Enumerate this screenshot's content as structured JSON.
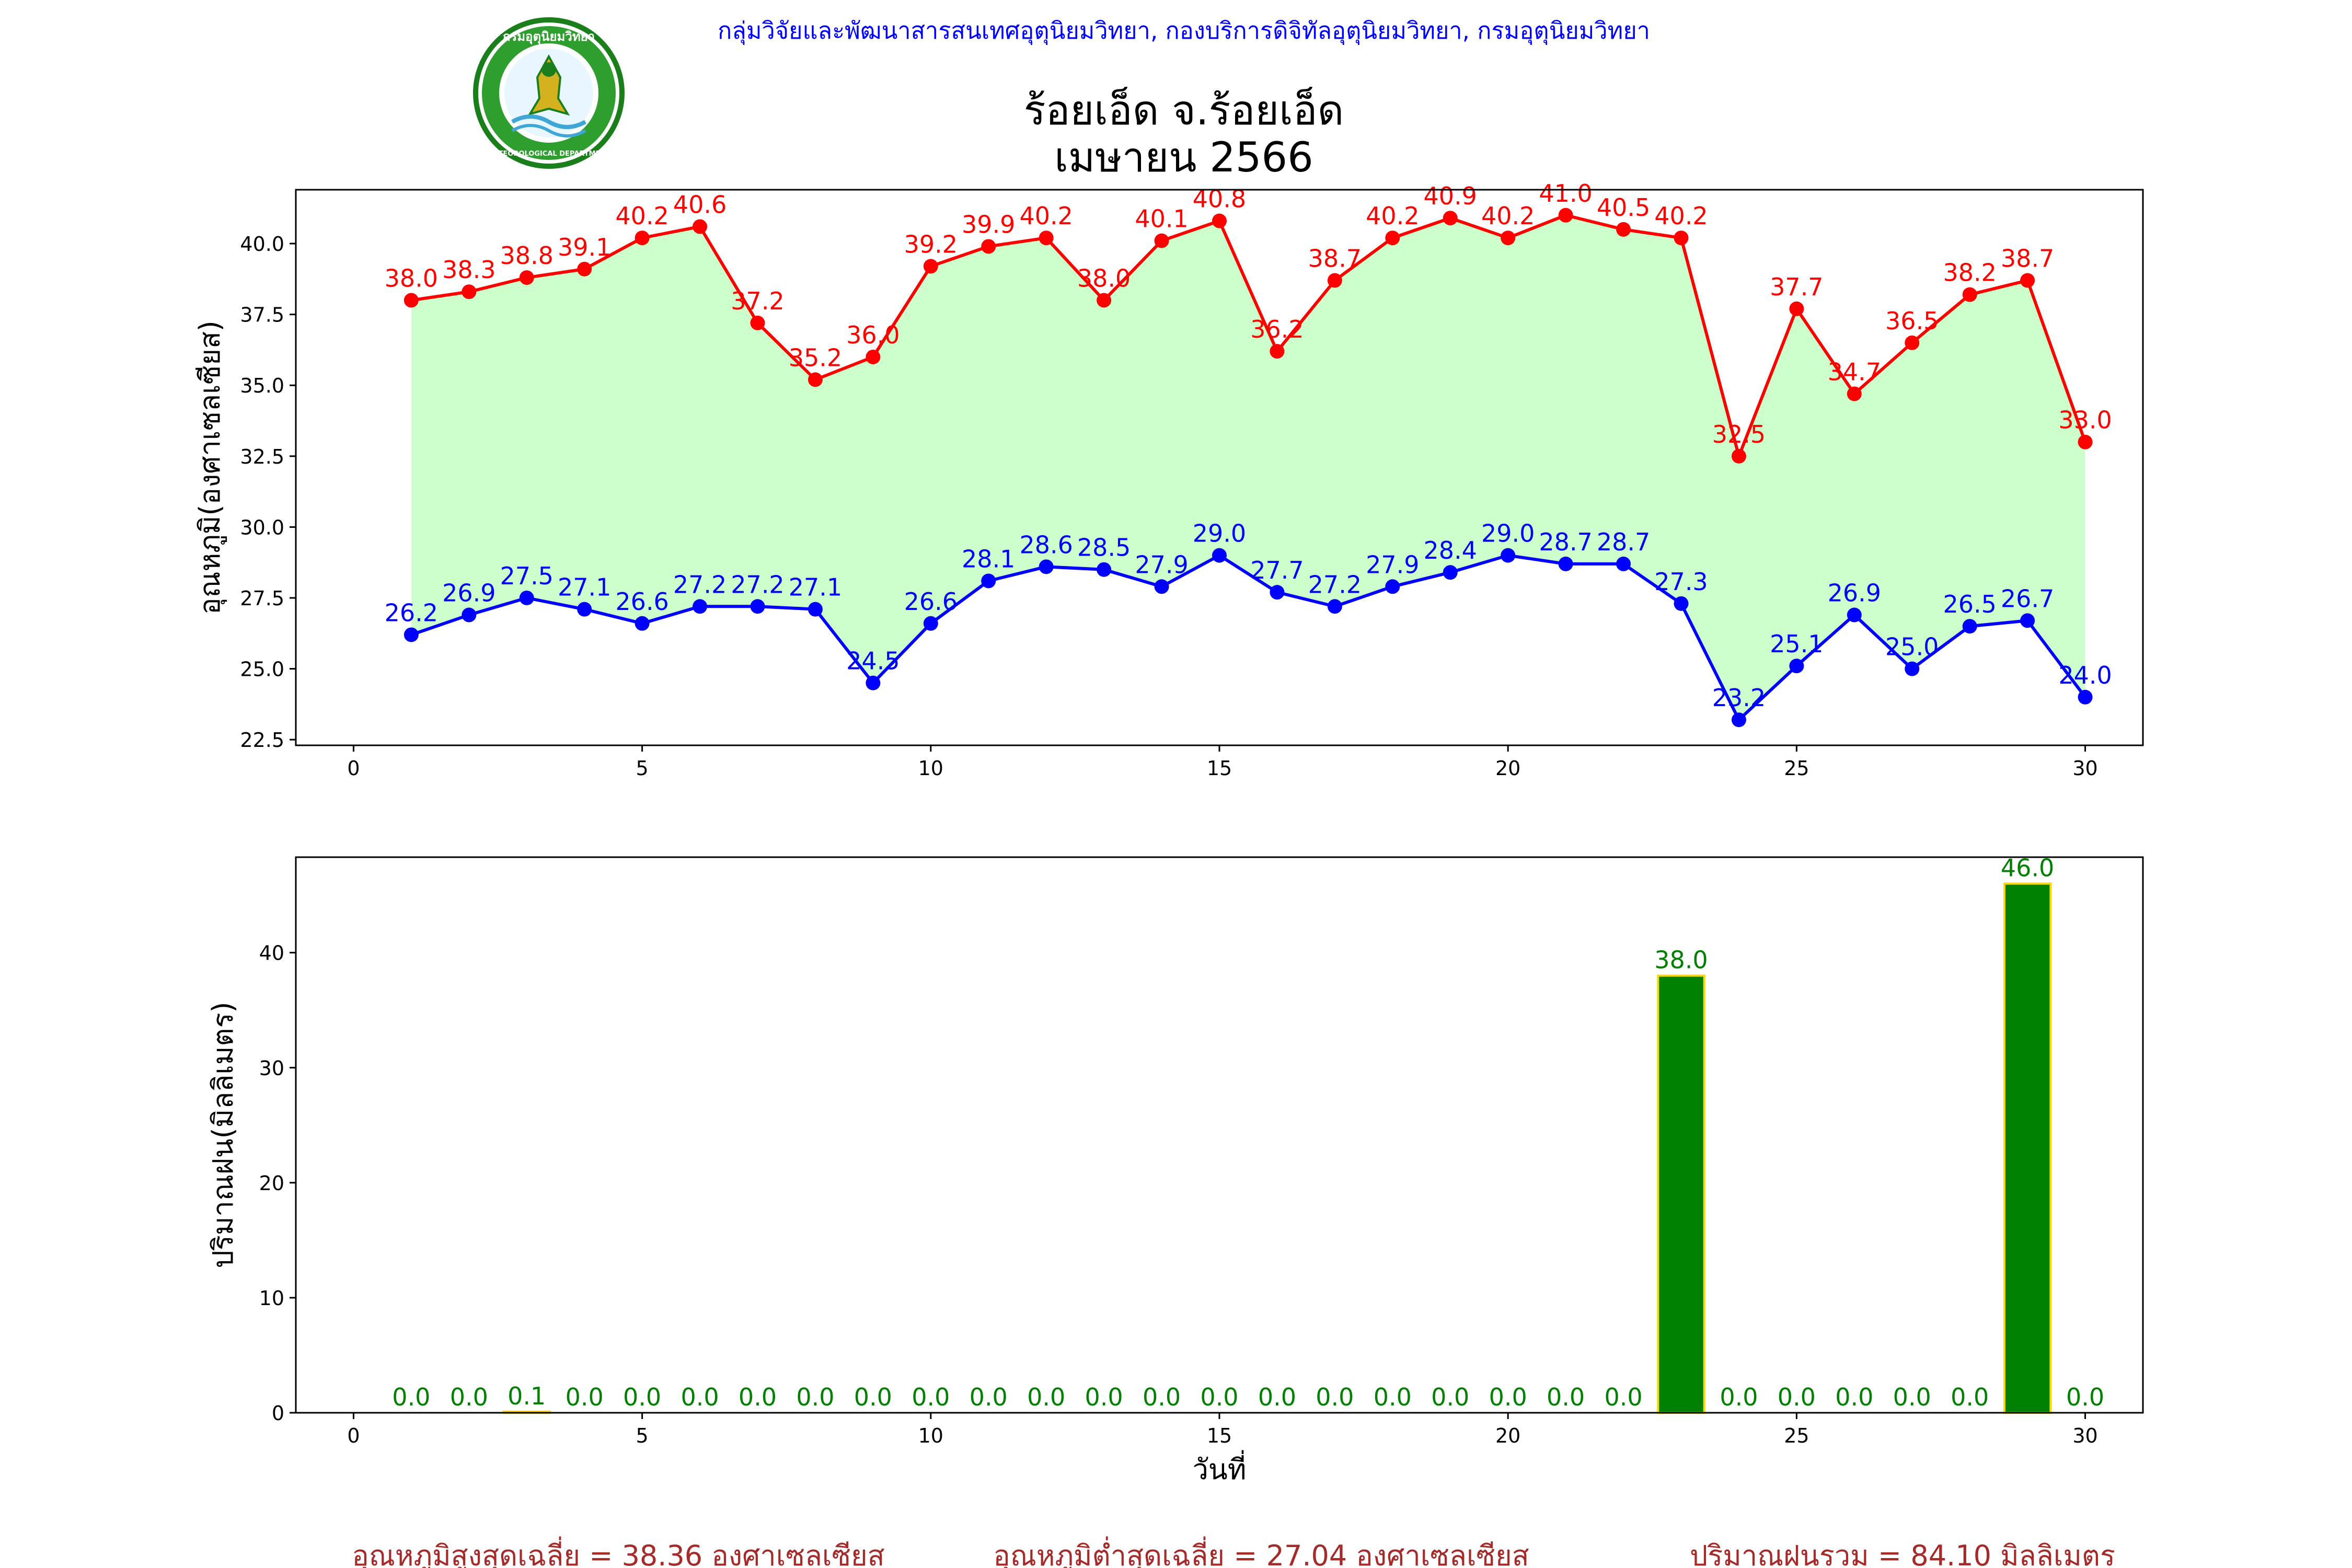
{
  "header": {
    "organization": "กลุ่มวิจัยและพัฒนาสารสนเทศอุตุนิยมวิทยา, กองบริการดิจิทัลอุตุนิยมวิทยา, กรมอุตุนิยมวิทยา",
    "logo_text": "กรมอุตุนิยมวิทยา",
    "logo_subtext": "METEOROLOGICAL DEPARTMENT"
  },
  "title": {
    "line1": "ร้อยเอ็ด จ.ร้อยเอ็ด",
    "line2": "เมษายน 2566"
  },
  "footer": {
    "avg_max": "อุณหภูมิสูงสุดเฉลี่ย = 38.36 องศาเซลเซียส",
    "avg_min": "อุณหภูมิต่ำสุดเฉลี่ย = 27.04 องศาเซลเซียส",
    "total_rain": "ปริมาณฝนรวม = 84.10 มิลลิเมตร"
  },
  "colors": {
    "max": "#ff0000",
    "min": "#0000ff",
    "fill": "#ccffcc",
    "bar": "#008000",
    "bar_edge": "#ffd700",
    "bar_label": "#008000"
  },
  "chart_data": [
    {
      "type": "line",
      "ylabel": "อุณหภูมิ(องศาเซลเซียส)",
      "xlabel": "",
      "xlim": [
        -1,
        31
      ],
      "ylim": [
        22.3,
        41.9
      ],
      "xticks": [
        0,
        5,
        10,
        15,
        20,
        25,
        30
      ],
      "yticks": [
        "22.5",
        "25.0",
        "27.5",
        "30.0",
        "32.5",
        "35.0",
        "37.5",
        "40.0"
      ],
      "x": [
        1,
        2,
        3,
        4,
        5,
        6,
        7,
        8,
        9,
        10,
        11,
        12,
        13,
        14,
        15,
        16,
        17,
        18,
        19,
        20,
        21,
        22,
        23,
        24,
        25,
        26,
        27,
        28,
        29,
        30
      ],
      "series": [
        {
          "key": "max",
          "values": [
            38.0,
            38.3,
            38.8,
            39.1,
            40.2,
            40.6,
            37.2,
            35.2,
            36.0,
            39.2,
            39.9,
            40.2,
            38.0,
            40.1,
            40.8,
            36.2,
            38.7,
            40.2,
            40.9,
            40.2,
            41.0,
            40.5,
            40.2,
            32.5,
            37.7,
            34.7,
            36.5,
            38.2,
            38.7,
            33.0
          ]
        },
        {
          "key": "min",
          "values": [
            26.2,
            26.9,
            27.5,
            27.1,
            26.6,
            27.2,
            27.2,
            27.1,
            24.5,
            26.6,
            28.1,
            28.6,
            28.5,
            27.9,
            29.0,
            27.7,
            27.2,
            27.9,
            28.4,
            29.0,
            28.7,
            28.7,
            27.3,
            23.2,
            25.1,
            26.9,
            25.0,
            26.5,
            26.7,
            24.0
          ]
        }
      ],
      "grid": false,
      "legend": "none"
    },
    {
      "type": "bar",
      "ylabel": "ปริมาณฝน(มิลลิเมตร)",
      "xlabel": "วันที่",
      "xlim": [
        -1,
        31
      ],
      "ylim": [
        0,
        48.3
      ],
      "xticks": [
        0,
        5,
        10,
        15,
        20,
        25,
        30
      ],
      "yticks": [
        "0",
        "10",
        "20",
        "30",
        "40"
      ],
      "categories": [
        1,
        2,
        3,
        4,
        5,
        6,
        7,
        8,
        9,
        10,
        11,
        12,
        13,
        14,
        15,
        16,
        17,
        18,
        19,
        20,
        21,
        22,
        23,
        24,
        25,
        26,
        27,
        28,
        29,
        30
      ],
      "values": [
        0.0,
        0.0,
        0.1,
        0.0,
        0.0,
        0.0,
        0.0,
        0.0,
        0.0,
        0.0,
        0.0,
        0.0,
        0.0,
        0.0,
        0.0,
        0.0,
        0.0,
        0.0,
        0.0,
        0.0,
        0.0,
        0.0,
        38.0,
        0.0,
        0.0,
        0.0,
        0.0,
        0.0,
        46.0,
        0.0
      ],
      "grid": false,
      "legend": "none"
    }
  ]
}
